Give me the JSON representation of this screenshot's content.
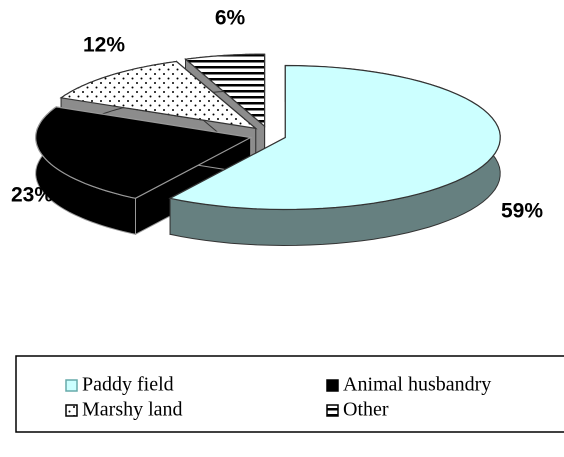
{
  "chart_data": {
    "type": "pie",
    "categories": [
      "Paddy field",
      "Animal husbandry",
      "Marshy land",
      "Other"
    ],
    "values": [
      59,
      23,
      12,
      6
    ],
    "value_labels": [
      "59%",
      "23%",
      "12%",
      "6%"
    ],
    "colors": [
      "#ccffff",
      "#000000",
      "#ffffff",
      "#ffffff"
    ]
  }
}
